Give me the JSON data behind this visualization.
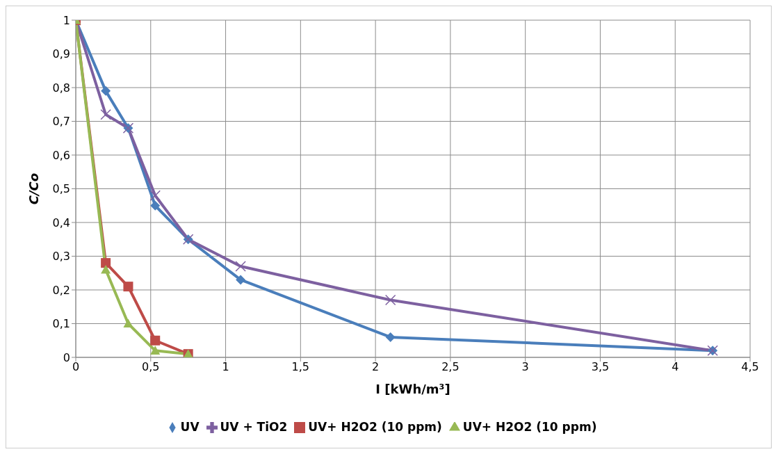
{
  "chart_data": {
    "type": "line",
    "xlabel": "I [kWh/m³]",
    "ylabel": "C/Co",
    "xlim": [
      0,
      4.5
    ],
    "xticks": [
      0,
      {
        "value": 0.5,
        "label": "0,5"
      },
      1,
      {
        "value": 1.5,
        "label": "1,5"
      },
      2,
      {
        "value": 2.5,
        "label": "2,5"
      },
      3,
      {
        "value": 3.5,
        "label": "3,5"
      },
      4,
      {
        "value": 4.5,
        "label": "4,5"
      }
    ],
    "ylim": [
      0,
      1
    ],
    "yticks": [
      0,
      {
        "value": 0.1,
        "label": "0,1"
      },
      {
        "value": 0.2,
        "label": "0,2"
      },
      {
        "value": 0.3,
        "label": "0,3"
      },
      {
        "value": 0.4,
        "label": "0,4"
      },
      {
        "value": 0.5,
        "label": "0,5"
      },
      {
        "value": 0.6,
        "label": "0,6"
      },
      {
        "value": 0.7,
        "label": "0,7"
      },
      {
        "value": 0.8,
        "label": "0,8"
      },
      {
        "value": 0.9,
        "label": "0,9"
      },
      1
    ],
    "grid": true,
    "legend": "bottom",
    "line_style": "solid",
    "series": [
      {
        "name": "UV",
        "color": "#4a7ebb",
        "marker": "diamond",
        "x": [
          0,
          0.2,
          0.35,
          0.53,
          0.75,
          1.1,
          2.1,
          4.25
        ],
        "values": [
          1,
          0.79,
          0.68,
          0.45,
          0.35,
          0.23,
          0.06,
          0.02
        ]
      },
      {
        "name": "UV + TiO2",
        "color": "#7d60a0",
        "marker": "cross",
        "x": [
          0,
          0.2,
          0.35,
          0.53,
          0.75,
          1.1,
          2.1,
          4.25
        ],
        "values": [
          1,
          0.72,
          0.68,
          0.48,
          0.35,
          0.27,
          0.17,
          0.02
        ]
      },
      {
        "name": "UV+ H2O2 (10 ppm)",
        "color": "#be4b48",
        "marker": "square",
        "x": [
          0,
          0.2,
          0.35,
          0.53,
          0.75
        ],
        "values": [
          1,
          0.28,
          0.21,
          0.05,
          0.01
        ]
      },
      {
        "name": "UV+ H2O2 (10 ppm)",
        "color": "#98b954",
        "marker": "triangle",
        "x": [
          0,
          0.2,
          0.35,
          0.53,
          0.75
        ],
        "values": [
          1,
          0.26,
          0.1,
          0.02,
          0.01
        ]
      }
    ]
  }
}
